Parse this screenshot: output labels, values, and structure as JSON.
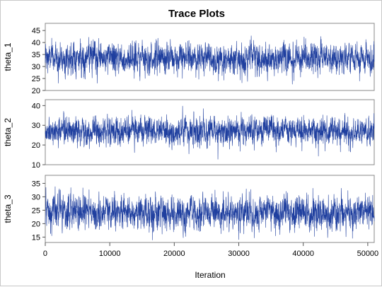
{
  "chart_data": {
    "type": "line",
    "title": "Trace Plots",
    "xlabel": "Iteration",
    "xlim": [
      1,
      51000
    ],
    "x_ticks": [
      0,
      10000,
      20000,
      30000,
      40000,
      50000
    ],
    "series_color": "#1f3f9f",
    "grid": false,
    "panels": [
      {
        "name": "theta_1",
        "ylabel": "theta_1",
        "ylim": [
          20,
          48
        ],
        "y_ticks": [
          20,
          25,
          30,
          35,
          40,
          45
        ],
        "mean": 33.5,
        "sd": 3.2,
        "min": 22,
        "max": 48
      },
      {
        "name": "theta_2",
        "ylabel": "theta_2",
        "ylim": [
          10,
          43
        ],
        "y_ticks": [
          10,
          20,
          30,
          40
        ],
        "mean": 27,
        "sd": 3.5,
        "min": 12,
        "max": 43
      },
      {
        "name": "theta_3",
        "ylabel": "theta_3",
        "ylim": [
          13,
          38
        ],
        "y_ticks": [
          15,
          20,
          25,
          30,
          35
        ],
        "mean": 24,
        "sd": 3.2,
        "min": 13,
        "max": 38
      }
    ]
  }
}
